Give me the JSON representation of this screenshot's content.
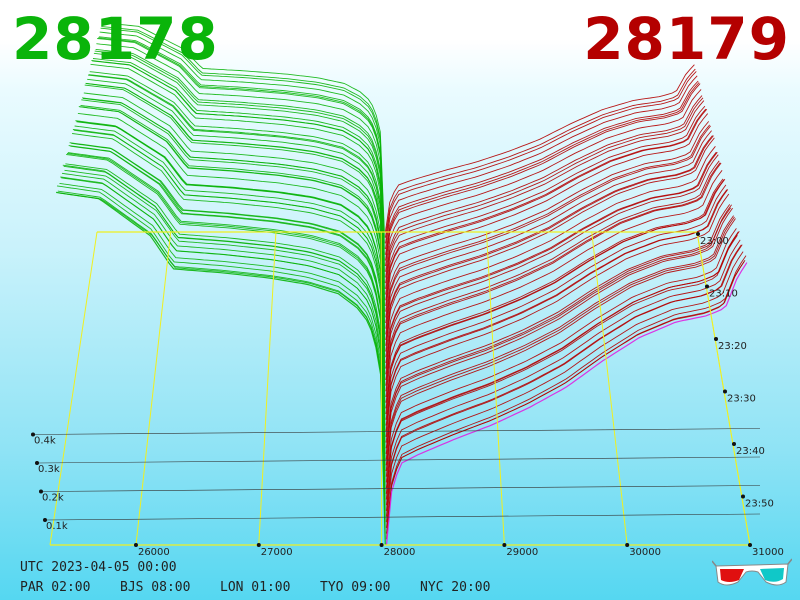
{
  "header": {
    "bid_price": "28178",
    "ask_price": "28179",
    "bid_color": "#0ab40a",
    "ask_color": "#b40000"
  },
  "chart_data": {
    "type": "area",
    "x_ticks": [
      "26000",
      "27000",
      "28000",
      "29000",
      "30000",
      "31000"
    ],
    "y_ticks": [
      "0.1k",
      "0.2k",
      "0.3k",
      "0.4k"
    ],
    "time_ticks": [
      "23:00",
      "23:10",
      "23:20",
      "23:30",
      "23:40",
      "23:50"
    ],
    "xlim": [
      25300,
      31000
    ],
    "series": [
      {
        "side": "bid",
        "color": "#0ab40a",
        "profile": [
          [
            25350,
            448
          ],
          [
            25700,
            440
          ],
          [
            26120,
            392
          ],
          [
            26300,
            350
          ],
          [
            26700,
            345
          ],
          [
            27100,
            338
          ],
          [
            27400,
            330
          ],
          [
            27650,
            318
          ],
          [
            27800,
            300
          ],
          [
            27900,
            280
          ],
          [
            27970,
            240
          ],
          [
            28000,
            205
          ],
          [
            28030,
            0
          ]
        ]
      },
      {
        "side": "ask",
        "color": "#b40000",
        "profile": [
          [
            28040,
            0
          ],
          [
            28070,
            58
          ],
          [
            28150,
            100
          ],
          [
            28300,
            112
          ],
          [
            28600,
            132
          ],
          [
            28900,
            150
          ],
          [
            29200,
            172
          ],
          [
            29500,
            198
          ],
          [
            29800,
            232
          ],
          [
            30100,
            262
          ],
          [
            30400,
            282
          ],
          [
            30650,
            290
          ],
          [
            30800,
            300
          ],
          [
            30900,
            340
          ],
          [
            30975,
            358
          ]
        ]
      }
    ],
    "grid": true
  },
  "footer": {
    "utc": "UTC 2023-04-05 00:00",
    "zones": [
      "PAR 02:00",
      "BJS 08:00",
      "LON 01:00",
      "TYO 09:00",
      "NYC 20:00"
    ]
  }
}
